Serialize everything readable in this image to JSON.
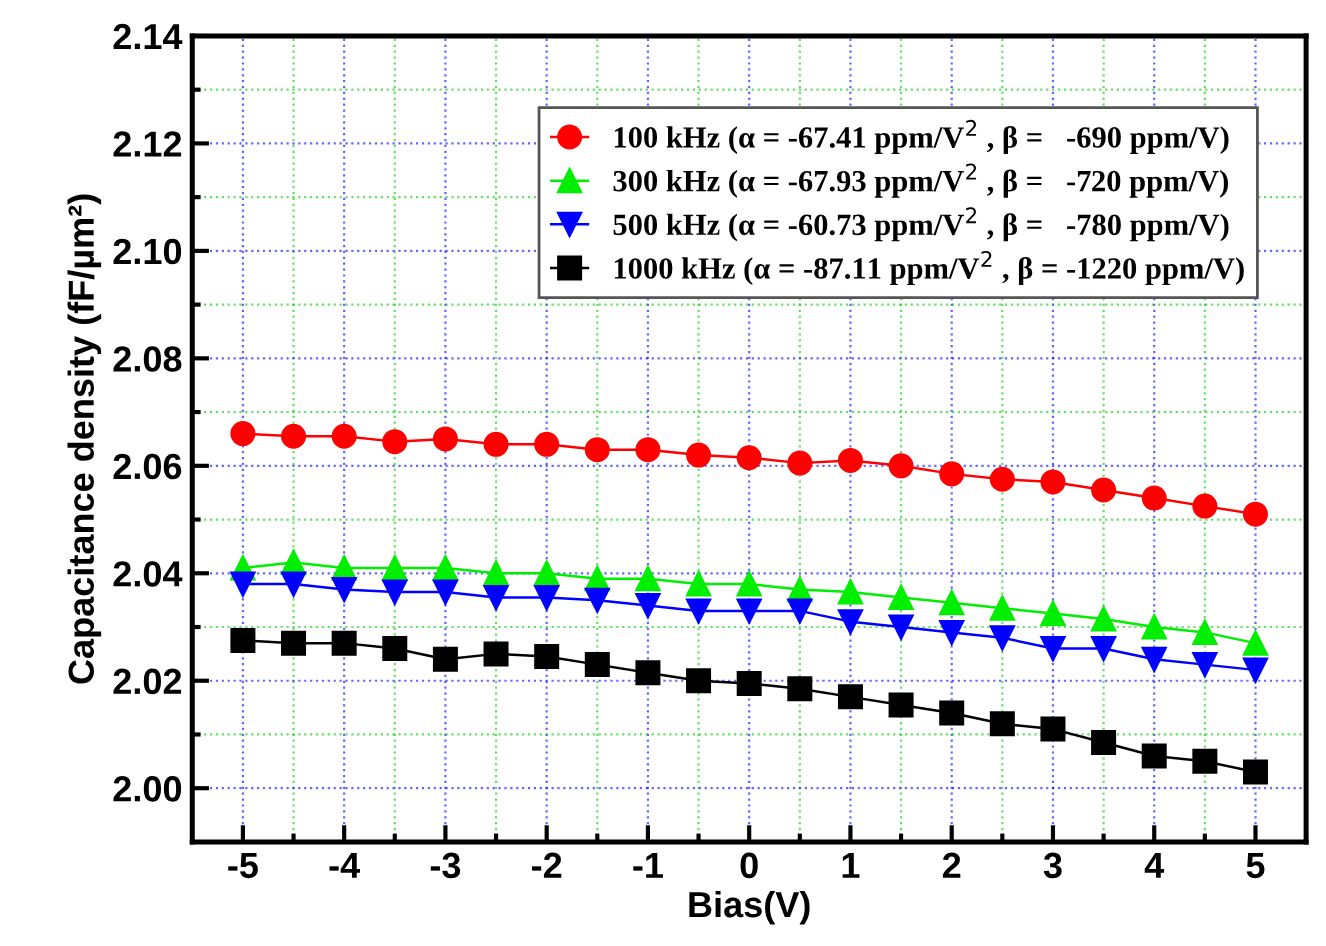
{
  "chart_data": {
    "type": "line",
    "xlabel": "Bias(V)",
    "ylabel": "Capacitance density (fF/µm²)",
    "x": [
      -5,
      -4.5,
      -4,
      -3.5,
      -3,
      -2.5,
      -2,
      -1.5,
      -1,
      -0.5,
      0,
      0.5,
      1,
      1.5,
      2,
      2.5,
      3,
      3.5,
      4,
      4.5,
      5
    ],
    "xlim": [
      -5.5,
      5.5
    ],
    "xticks": [
      -5,
      {
        "value": -4.5,
        "label": null
      },
      -4,
      {
        "value": -3.5,
        "label": null
      },
      -3,
      {
        "value": -2.5,
        "label": null
      },
      -2,
      {
        "value": -1.5,
        "label": null
      },
      -1,
      {
        "value": -0.5,
        "label": null
      },
      0,
      {
        "value": 0.5,
        "label": null
      },
      1,
      {
        "value": 1.5,
        "label": null
      },
      2,
      {
        "value": 2.5,
        "label": null
      },
      3,
      {
        "value": 3.5,
        "label": null
      },
      4,
      {
        "value": 4.5,
        "label": null
      },
      5
    ],
    "ylim": [
      1.99,
      2.14
    ],
    "yticks": [
      {
        "value": 2.0,
        "label": "2.00"
      },
      {
        "value": 2.01,
        "label": null
      },
      {
        "value": 2.02,
        "label": "2.02"
      },
      {
        "value": 2.03,
        "label": null
      },
      {
        "value": 2.04,
        "label": "2.04"
      },
      {
        "value": 2.05,
        "label": null
      },
      {
        "value": 2.06,
        "label": "2.06"
      },
      {
        "value": 2.07,
        "label": null
      },
      {
        "value": 2.08,
        "label": "2.08"
      },
      {
        "value": 2.09,
        "label": null
      },
      {
        "value": 2.1,
        "label": "2.10"
      },
      {
        "value": 2.11,
        "label": null
      },
      {
        "value": 2.12,
        "label": "2.12"
      },
      {
        "value": 2.13,
        "label": null
      },
      {
        "value": 2.14,
        "label": "2.14"
      }
    ],
    "grid": true,
    "legend": "top right",
    "series": [
      {
        "name": "100 kHz (α = -67.41 ppm/V$^{2}$ , β =   -690 ppm/V)",
        "color": "#ff0000",
        "marker": "circle",
        "values": [
          2.066,
          2.0655,
          2.0655,
          2.0645,
          2.065,
          2.064,
          2.064,
          2.063,
          2.063,
          2.062,
          2.0615,
          2.0605,
          2.061,
          2.06,
          2.0585,
          2.0575,
          2.057,
          2.0555,
          2.054,
          2.0525,
          2.051
        ]
      },
      {
        "name": "300 kHz (α = -67.93 ppm/V$^{2}$ , β =   -720 ppm/V)",
        "color": "#00ee00",
        "marker": "triangle",
        "values": [
          2.041,
          2.042,
          2.041,
          2.041,
          2.041,
          2.04,
          2.04,
          2.039,
          2.039,
          2.038,
          2.038,
          2.037,
          2.0365,
          2.0355,
          2.0345,
          2.0335,
          2.0325,
          2.0315,
          2.03,
          2.029,
          2.027
        ]
      },
      {
        "name": "500 kHz (α = -60.73 ppm/V$^{2}$ , β =   -780 ppm/V)",
        "color": "#0000ff",
        "marker": "triangle_down",
        "values": [
          2.038,
          2.038,
          2.037,
          2.0365,
          2.0365,
          2.0355,
          2.0355,
          2.035,
          2.034,
          2.033,
          2.033,
          2.033,
          2.031,
          2.03,
          2.029,
          2.028,
          2.026,
          2.026,
          2.024,
          2.023,
          2.022
        ]
      },
      {
        "name": "1000 kHz (α = -87.11 ppm/V$^{2}$ , β = -1220 ppm/V)",
        "color": "#000000",
        "marker": "square",
        "values": [
          2.0275,
          2.027,
          2.027,
          2.026,
          2.024,
          2.025,
          2.0245,
          2.023,
          2.0215,
          2.02,
          2.0195,
          2.0185,
          2.017,
          2.0155,
          2.014,
          2.012,
          2.011,
          2.0085,
          2.006,
          2.005,
          2.003
        ]
      }
    ]
  }
}
